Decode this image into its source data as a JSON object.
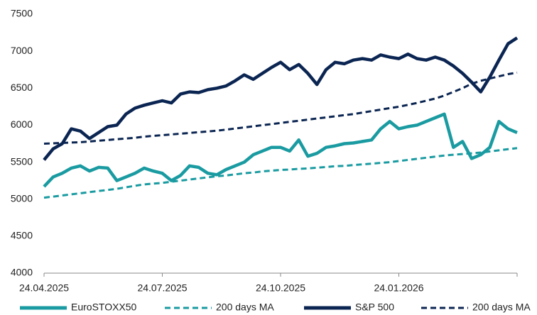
{
  "chart_data": {
    "type": "line",
    "categories": [
      "24.04.2025",
      null,
      null,
      null,
      null,
      null,
      null,
      null,
      null,
      null,
      null,
      null,
      null,
      "24.07.2025",
      null,
      null,
      null,
      null,
      null,
      null,
      null,
      null,
      null,
      null,
      null,
      null,
      "24.10.2025",
      null,
      null,
      null,
      null,
      null,
      null,
      null,
      null,
      null,
      null,
      null,
      null,
      "24.01.2026",
      null,
      null,
      null,
      null,
      null,
      null,
      null,
      null,
      null,
      null,
      null,
      null,
      null
    ],
    "ylim": [
      4000,
      7500
    ],
    "yticks": [
      4000,
      4500,
      5000,
      5500,
      6000,
      6500,
      7000,
      7500
    ],
    "grid": false,
    "legend": "bottom",
    "series": [
      {
        "name": "EuroSTOXX50",
        "color": "#1a9ba1",
        "style": "solid",
        "values": [
          5170,
          5300,
          5350,
          5420,
          5450,
          5380,
          5430,
          5420,
          5250,
          5300,
          5350,
          5420,
          5380,
          5350,
          5250,
          5320,
          5450,
          5430,
          5350,
          5330,
          5400,
          5450,
          5500,
          5600,
          5650,
          5700,
          5700,
          5650,
          5800,
          5580,
          5620,
          5700,
          5720,
          5750,
          5760,
          5780,
          5800,
          5950,
          6050,
          5950,
          5980,
          6000,
          6050,
          6100,
          6150,
          5700,
          5780,
          5550,
          5600,
          5700,
          6050,
          5950,
          5900
        ]
      },
      {
        "name": "200 days MA",
        "color": "#1a9ba1",
        "style": "dashed",
        "values": [
          5020,
          5035,
          5050,
          5065,
          5080,
          5095,
          5110,
          5125,
          5140,
          5160,
          5180,
          5200,
          5210,
          5220,
          5235,
          5250,
          5265,
          5280,
          5295,
          5310,
          5320,
          5335,
          5350,
          5360,
          5375,
          5385,
          5395,
          5400,
          5410,
          5415,
          5425,
          5435,
          5445,
          5450,
          5460,
          5470,
          5480,
          5490,
          5500,
          5515,
          5530,
          5545,
          5560,
          5575,
          5590,
          5600,
          5610,
          5620,
          5630,
          5645,
          5660,
          5675,
          5690
        ]
      },
      {
        "name": "S&P 500",
        "color": "#0b2552",
        "style": "solid",
        "values": [
          5530,
          5680,
          5750,
          5950,
          5920,
          5820,
          5900,
          5980,
          6000,
          6150,
          6230,
          6270,
          6300,
          6330,
          6300,
          6420,
          6450,
          6440,
          6480,
          6500,
          6530,
          6600,
          6680,
          6620,
          6700,
          6780,
          6850,
          6750,
          6820,
          6700,
          6550,
          6750,
          6850,
          6830,
          6880,
          6900,
          6880,
          6950,
          6920,
          6900,
          6960,
          6900,
          6880,
          6920,
          6880,
          6800,
          6700,
          6580,
          6450,
          6650,
          6880,
          7100,
          7180
        ]
      },
      {
        "name": "200 days MA",
        "color": "#0b2552",
        "style": "dashed",
        "values": [
          5750,
          5755,
          5760,
          5765,
          5770,
          5780,
          5790,
          5800,
          5810,
          5820,
          5830,
          5845,
          5855,
          5865,
          5875,
          5885,
          5895,
          5905,
          5915,
          5925,
          5940,
          5955,
          5970,
          5985,
          6000,
          6015,
          6030,
          6045,
          6060,
          6075,
          6090,
          6105,
          6120,
          6135,
          6150,
          6170,
          6190,
          6210,
          6230,
          6250,
          6275,
          6300,
          6330,
          6360,
          6400,
          6450,
          6500,
          6560,
          6600,
          6630,
          6660,
          6690,
          6710
        ]
      }
    ]
  }
}
